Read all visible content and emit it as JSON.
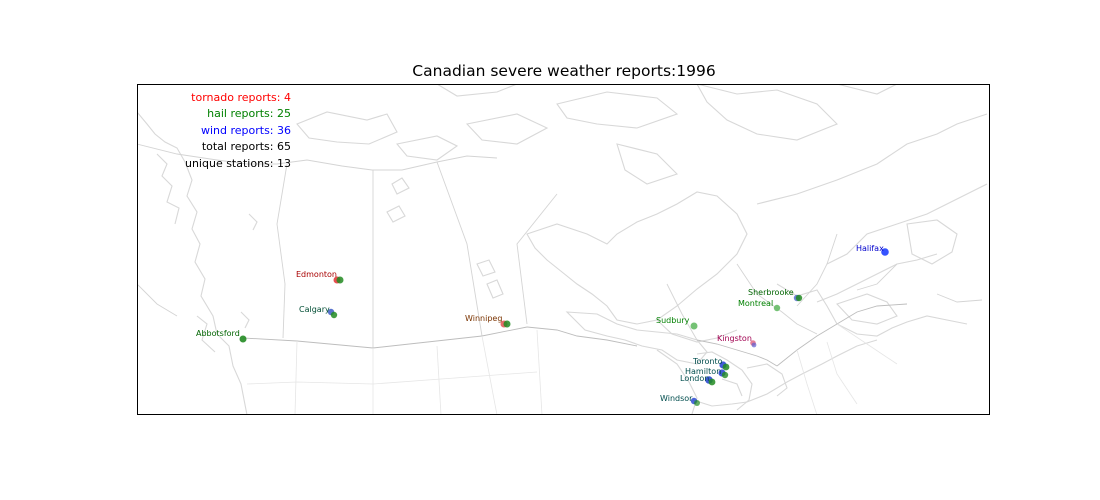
{
  "title": "Canadian severe weather reports:1996",
  "stats": {
    "tornado": "tornado reports: 4",
    "hail": "hail reports: 25",
    "wind": "wind reports: 36",
    "total": "total reports: 65",
    "stations": "unique stations: 13"
  },
  "colors": {
    "tornado": "#ff0000",
    "hail": "#008000",
    "wind": "#0000ff",
    "total": "#000000",
    "stations": "#000000",
    "boundary": "#e0e0e0",
    "coast": "#cccccc"
  },
  "cities": [
    {
      "name": "Edmonton",
      "lon": -113.5,
      "lat": 53.5,
      "label_color": "#a80000"
    },
    {
      "name": "Calgary",
      "lon": -114.1,
      "lat": 51.0,
      "label_color": "#004d33"
    },
    {
      "name": "Abbotsford",
      "lon": -122.3,
      "lat": 49.0,
      "label_color": "#006400"
    },
    {
      "name": "Winnipeg",
      "lon": -97.1,
      "lat": 49.9,
      "label_color": "#7a3300"
    },
    {
      "name": "Sudbury",
      "lon": -81.0,
      "lat": 46.5,
      "label_color": "#008000"
    },
    {
      "name": "Montreal",
      "lon": -73.6,
      "lat": 45.5,
      "label_color": "#008000"
    },
    {
      "name": "Sherbrooke",
      "lon": -71.9,
      "lat": 45.4,
      "label_color": "#006400"
    },
    {
      "name": "Halifax",
      "lon": -63.6,
      "lat": 44.6,
      "label_color": "#0000cc"
    },
    {
      "name": "Kingston",
      "lon": -76.5,
      "lat": 44.2,
      "label_color": "#a00050"
    },
    {
      "name": "Toronto",
      "lon": -79.4,
      "lat": 43.7,
      "label_color": "#004d4d"
    },
    {
      "name": "Hamilton",
      "lon": -79.9,
      "lat": 43.3,
      "label_color": "#004d4d"
    },
    {
      "name": "London",
      "lon": -81.2,
      "lat": 43.0,
      "label_color": "#004d4d"
    },
    {
      "name": "Windsor",
      "lon": -83.0,
      "lat": 42.3,
      "label_color": "#004d4d"
    }
  ]
}
